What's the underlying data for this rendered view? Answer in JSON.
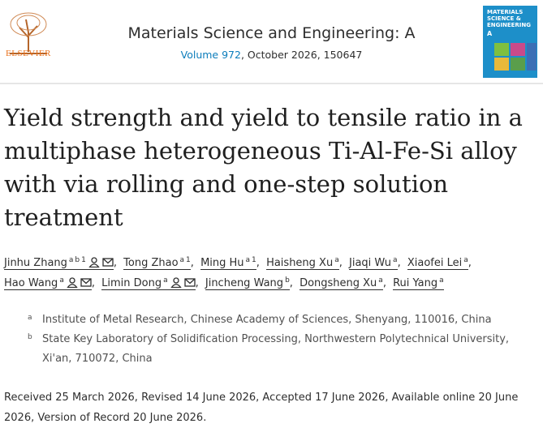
{
  "header": {
    "publisher": "ELSEVIER",
    "journal": "Materials Science and Engineering: A",
    "volume": "Volume 972",
    "issue_info": ", October 2026, 150647",
    "cover": {
      "title_lines": [
        "MATERIALS",
        "SCIENCE &",
        "ENGINEERING"
      ],
      "letter": "A"
    }
  },
  "title": "Yield strength and yield to tensile ratio in a multiphase heterogeneous Ti-Al-Fe-Si alloy with via rolling and one-step solution treatment",
  "author_separator": ",",
  "authors": [
    {
      "name": "Jinhu Zhang",
      "sup": [
        "a",
        "b",
        "1"
      ],
      "person_icon": true,
      "email_icon": true
    },
    {
      "name": "Tong Zhao",
      "sup": [
        "a",
        "1"
      ],
      "person_icon": false,
      "email_icon": false
    },
    {
      "name": "Ming Hu",
      "sup": [
        "a",
        "1"
      ],
      "person_icon": false,
      "email_icon": false
    },
    {
      "name": "Haisheng Xu",
      "sup": [
        "a"
      ],
      "person_icon": false,
      "email_icon": false
    },
    {
      "name": "Jiaqi Wu",
      "sup": [
        "a"
      ],
      "person_icon": false,
      "email_icon": false
    },
    {
      "name": "Xiaofei Lei",
      "sup": [
        "a"
      ],
      "person_icon": false,
      "email_icon": false
    },
    {
      "name": "Hao Wang",
      "sup": [
        "a"
      ],
      "person_icon": true,
      "email_icon": true
    },
    {
      "name": "Limin Dong",
      "sup": [
        "a"
      ],
      "person_icon": true,
      "email_icon": true
    },
    {
      "name": "Jincheng Wang",
      "sup": [
        "b"
      ],
      "person_icon": false,
      "email_icon": false
    },
    {
      "name": "Dongsheng Xu",
      "sup": [
        "a"
      ],
      "person_icon": false,
      "email_icon": false
    },
    {
      "name": "Rui Yang",
      "sup": [
        "a"
      ],
      "person_icon": false,
      "email_icon": false
    }
  ],
  "affiliations": [
    {
      "label": "a",
      "text": "Institute of Metal Research, Chinese Academy of Sciences, Shenyang, 110016, China"
    },
    {
      "label": "b",
      "text": "State Key Laboratory of Solidification Processing, Northwestern Polytechnical University, Xi'an, 710072, China"
    }
  ],
  "history": "Received 25 March 2026, Revised 14 June 2026, Accepted 17 June 2026, Available online 20 June 2026, Version of Record 20 June 2026."
}
